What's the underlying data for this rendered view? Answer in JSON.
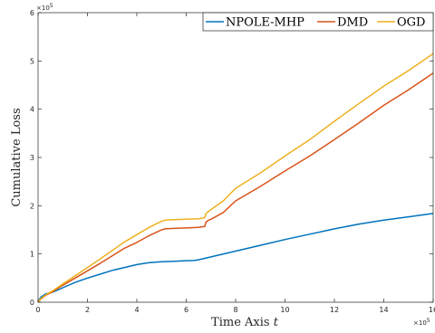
{
  "chart_data": {
    "type": "line",
    "xlabel": "Time Axis",
    "xlabel_var": "t",
    "ylabel": "Cumulative Loss",
    "xlim": [
      0,
      160000
    ],
    "ylim": [
      0,
      600000
    ],
    "x_ticks": [
      0,
      20000,
      40000,
      60000,
      80000,
      100000,
      120000,
      140000,
      160000
    ],
    "x_tick_labels": [
      "0",
      "2",
      "4",
      "6",
      "8",
      "10",
      "12",
      "14",
      "16"
    ],
    "y_ticks": [
      0,
      100000,
      200000,
      300000,
      400000,
      500000,
      600000
    ],
    "y_tick_labels": [
      "0",
      "1",
      "2",
      "3",
      "4",
      "5",
      "6"
    ],
    "x_exponent": {
      "base": "×10",
      "power": "5"
    },
    "y_exponent": {
      "base": "×10",
      "power": "5"
    },
    "legend_position": "top-right",
    "grid": false,
    "series": [
      {
        "name": "NPOLE-MHP",
        "color": "#0072BD",
        "x": [
          0,
          1000,
          3000,
          6000,
          10000,
          15000,
          20000,
          25000,
          30000,
          35000,
          40000,
          45000,
          50000,
          55000,
          60000,
          63000,
          65000,
          70000,
          80000,
          90000,
          100000,
          110000,
          120000,
          130000,
          140000,
          150000,
          160000
        ],
        "y": [
          0,
          10000,
          17000,
          21000,
          30000,
          41000,
          50000,
          58000,
          66000,
          72000,
          78000,
          82000,
          84000,
          85000,
          86000,
          86500,
          88000,
          94000,
          106000,
          118000,
          130000,
          141000,
          152000,
          162000,
          170000,
          177000,
          184000
        ]
      },
      {
        "name": "DMD",
        "color": "#D95319",
        "x": [
          0,
          1000,
          3000,
          6000,
          10000,
          15000,
          20000,
          25000,
          30000,
          35000,
          40000,
          45000,
          50000,
          51500,
          55000,
          60000,
          65000,
          67500,
          68000,
          69000,
          70000,
          75000,
          80000,
          90000,
          100000,
          110000,
          120000,
          130000,
          140000,
          150000,
          160000
        ],
        "y": [
          0,
          6000,
          14000,
          22000,
          35000,
          50000,
          65000,
          80000,
          96000,
          112000,
          124000,
          138000,
          150000,
          152000,
          153000,
          154000,
          155000,
          157000,
          166000,
          170000,
          172000,
          186000,
          210000,
          240000,
          272000,
          303000,
          337000,
          372000,
          408000,
          440000,
          475000
        ]
      },
      {
        "name": "OGD",
        "color": "#EDB120",
        "x": [
          0,
          1000,
          3000,
          6000,
          10000,
          15000,
          20000,
          25000,
          30000,
          35000,
          40000,
          45000,
          50000,
          51500,
          55000,
          60000,
          65000,
          67500,
          68000,
          69000,
          70000,
          75000,
          80000,
          90000,
          100000,
          110000,
          120000,
          130000,
          140000,
          150000,
          160000
        ],
        "y": [
          0,
          7000,
          15000,
          24000,
          38000,
          55000,
          72000,
          89000,
          107000,
          125000,
          140000,
          155000,
          168000,
          170000,
          171000,
          172000,
          173000,
          175000,
          184000,
          188000,
          192000,
          210000,
          236000,
          268000,
          303000,
          337000,
          375000,
          412000,
          448000,
          480000,
          515000
        ]
      }
    ]
  }
}
